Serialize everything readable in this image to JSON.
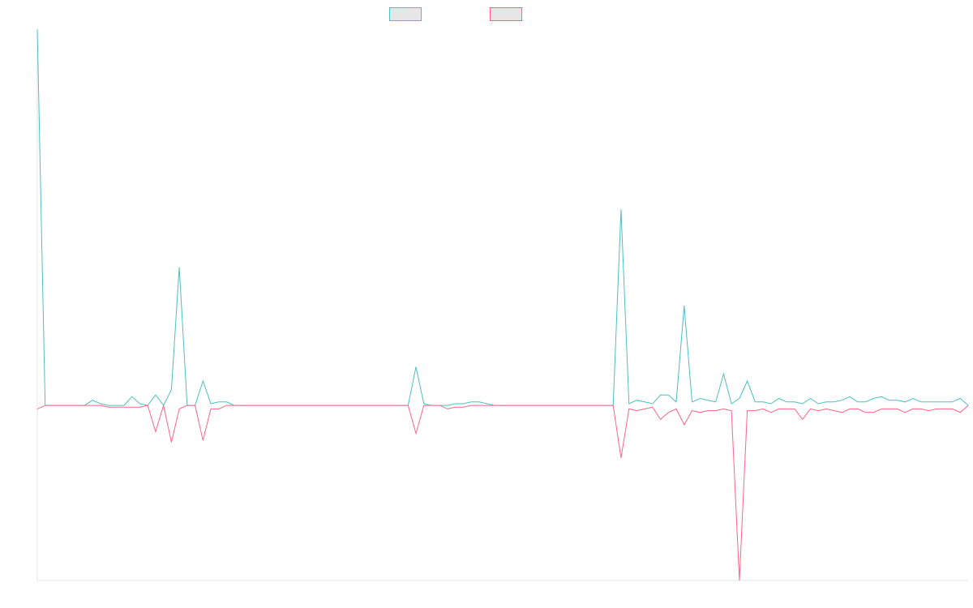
{
  "chart_data": {
    "type": "line",
    "title": "",
    "xlabel": "",
    "ylabel": "",
    "grid": false,
    "legend_position": "top-center",
    "ylim": [
      -1.0,
      2.15
    ],
    "series": [
      {
        "color": "#4bc0c0",
        "values": [
          2.15,
          0.0,
          0.0,
          0.0,
          0.0,
          0.0,
          0.0,
          0.03,
          0.01,
          0.0,
          0.0,
          0.0,
          0.05,
          0.01,
          0.0,
          0.06,
          0.0,
          0.09,
          0.79,
          0.0,
          0.0,
          0.14,
          0.01,
          0.02,
          0.02,
          0.0,
          0.0,
          0.0,
          0.0,
          0.0,
          0.0,
          0.0,
          0.0,
          0.0,
          0.0,
          0.0,
          0.0,
          0.0,
          0.0,
          0.0,
          0.0,
          0.0,
          0.0,
          0.0,
          0.0,
          0.0,
          0.0,
          0.0,
          0.22,
          0.01,
          0.0,
          0.0,
          0.0,
          0.01,
          0.01,
          0.02,
          0.02,
          0.01,
          0.0,
          0.0,
          0.0,
          0.0,
          0.0,
          0.0,
          0.0,
          0.0,
          0.0,
          0.0,
          0.0,
          0.0,
          0.0,
          0.0,
          0.0,
          0.0,
          1.12,
          0.01,
          0.03,
          0.02,
          0.01,
          0.06,
          0.06,
          0.02,
          0.57,
          0.02,
          0.04,
          0.03,
          0.02,
          0.18,
          0.01,
          0.04,
          0.14,
          0.02,
          0.02,
          0.01,
          0.04,
          0.02,
          0.02,
          0.01,
          0.04,
          0.01,
          0.02,
          0.02,
          0.03,
          0.05,
          0.02,
          0.02,
          0.04,
          0.05,
          0.03,
          0.03,
          0.02,
          0.04,
          0.02,
          0.02,
          0.02,
          0.02,
          0.02,
          0.04,
          0.0
        ]
      },
      {
        "color": "#ff6384",
        "values": [
          -0.02,
          0.0,
          0.0,
          0.0,
          0.0,
          0.0,
          0.0,
          0.0,
          0.0,
          -0.01,
          -0.01,
          -0.01,
          -0.01,
          -0.01,
          0.0,
          -0.15,
          0.0,
          -0.21,
          -0.02,
          0.0,
          0.0,
          -0.2,
          -0.02,
          -0.02,
          0.0,
          0.0,
          0.0,
          0.0,
          0.0,
          0.0,
          0.0,
          0.0,
          0.0,
          0.0,
          0.0,
          0.0,
          0.0,
          0.0,
          0.0,
          0.0,
          0.0,
          0.0,
          0.0,
          0.0,
          0.0,
          0.0,
          0.0,
          0.0,
          -0.16,
          0.0,
          0.0,
          0.0,
          -0.02,
          -0.01,
          -0.01,
          0.0,
          0.0,
          0.0,
          0.0,
          0.0,
          0.0,
          0.0,
          0.0,
          0.0,
          0.0,
          0.0,
          0.0,
          0.0,
          0.0,
          0.0,
          0.0,
          0.0,
          0.0,
          0.0,
          -0.3,
          -0.02,
          -0.03,
          -0.02,
          -0.01,
          -0.08,
          -0.04,
          -0.02,
          -0.11,
          -0.03,
          -0.04,
          -0.03,
          -0.03,
          -0.02,
          -0.03,
          -1.0,
          -0.03,
          -0.03,
          -0.02,
          -0.04,
          -0.02,
          -0.02,
          -0.02,
          -0.08,
          -0.02,
          -0.03,
          -0.02,
          -0.03,
          -0.04,
          -0.02,
          -0.02,
          -0.04,
          -0.04,
          -0.02,
          -0.02,
          -0.02,
          -0.04,
          -0.02,
          -0.02,
          -0.03,
          -0.02,
          -0.02,
          -0.02,
          -0.04,
          0.0
        ]
      }
    ]
  }
}
